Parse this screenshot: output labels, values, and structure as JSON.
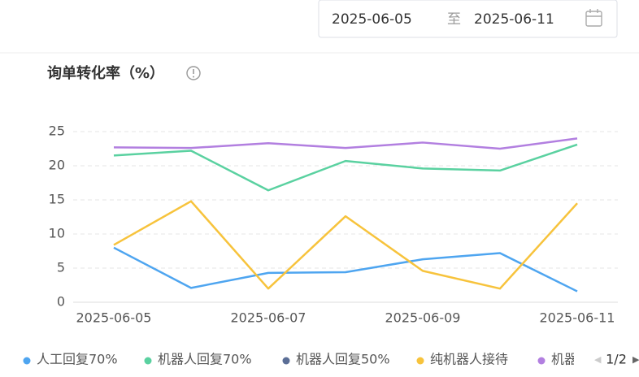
{
  "date_range": {
    "start": "2025-06-05",
    "separator": "至",
    "end": "2025-06-11"
  },
  "chart_data": {
    "type": "line",
    "title": "询单转化率（%）",
    "categories": [
      "2025-06-05",
      null,
      "2025-06-07",
      null,
      "2025-06-09",
      null,
      "2025-06-11"
    ],
    "series": [
      {
        "name": "人工回复70%",
        "color": "#4ea5f0",
        "values": [
          8.0,
          2.1,
          4.3,
          4.4,
          6.3,
          7.2,
          1.6
        ]
      },
      {
        "name": "机器人回复70%",
        "color": "#5ad1a0",
        "values": [
          21.5,
          22.2,
          16.4,
          20.7,
          19.6,
          19.3,
          23.1
        ]
      },
      {
        "name": "机器人回复50%",
        "color": "#5b6e96",
        "values": [
          null,
          null,
          null,
          null,
          null,
          null,
          null
        ]
      },
      {
        "name": "纯机器人接待",
        "color": "#f7c33c",
        "values": [
          8.4,
          14.8,
          2.0,
          12.6,
          4.6,
          2.0,
          14.5
        ]
      },
      {
        "name": "机器",
        "color": "#b27fe0",
        "values": [
          22.7,
          22.6,
          23.3,
          22.6,
          23.4,
          22.5,
          24.0
        ]
      }
    ],
    "ylim": [
      0,
      25
    ],
    "yticks": [
      0,
      5,
      10,
      15,
      20,
      25
    ],
    "grid": true,
    "legend": "bottom",
    "legend_page": "1/2"
  }
}
